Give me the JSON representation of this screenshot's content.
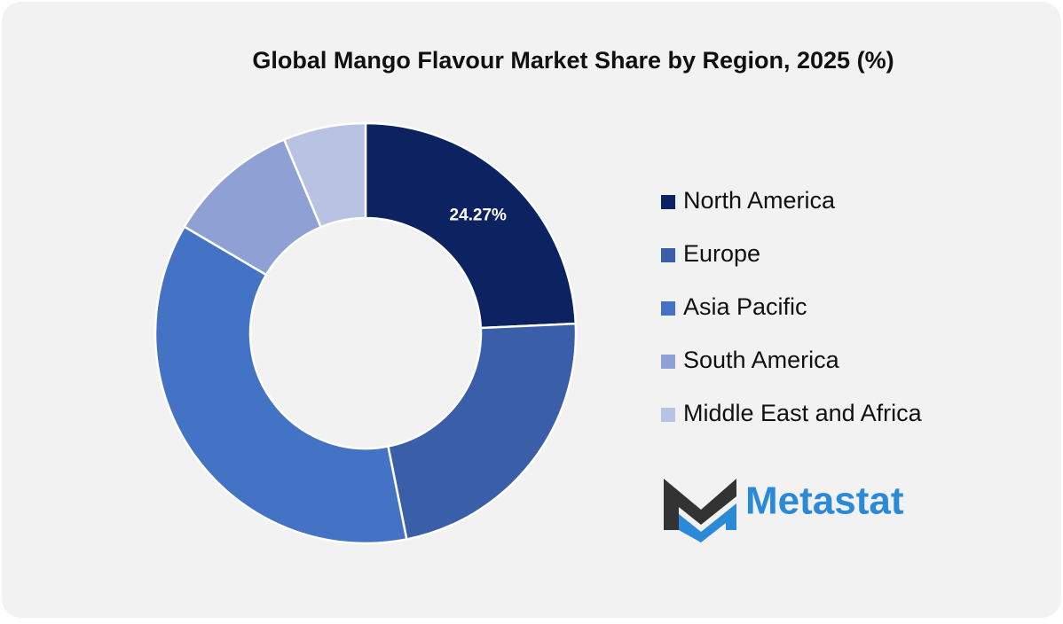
{
  "chart_data": {
    "type": "donut",
    "title": "Global Mango Flavour Market Share by Region, 2025 (%)",
    "categories": [
      "North America",
      "Europe",
      "Asia Pacific",
      "South America",
      "Middle East and Africa"
    ],
    "values": [
      24.27,
      22.6,
      36.6,
      10.2,
      6.33
    ],
    "value_labels": [
      "24.27%",
      null,
      null,
      null,
      null
    ],
    "colors": [
      "#0d2260",
      "#3b5ea8",
      "#4472c4",
      "#8fa1d4",
      "#b8c3e3"
    ],
    "legend": "right"
  },
  "brand": "Metastat"
}
